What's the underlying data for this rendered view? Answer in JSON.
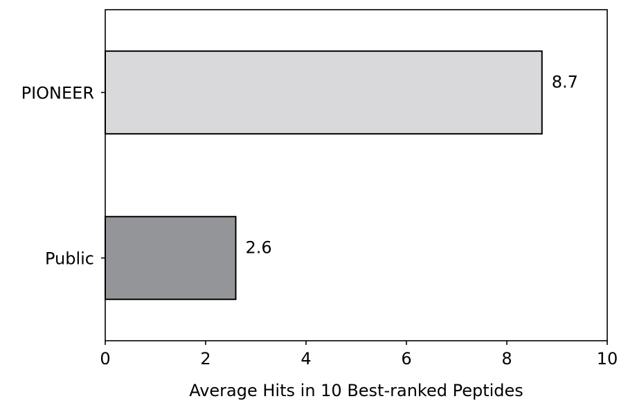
{
  "chart_data": {
    "type": "bar",
    "orientation": "horizontal",
    "categories": [
      "PIONEER",
      "Public"
    ],
    "values": [
      8.7,
      2.6
    ],
    "data_labels": [
      "8.7",
      "2.6"
    ],
    "colors": [
      "#d9d9db",
      "#949598"
    ],
    "edge_color": "#000000",
    "xlabel": "Average Hits in 10 Best-ranked Peptides",
    "xlim": [
      0,
      10
    ],
    "xticks": [
      0,
      2,
      4,
      6,
      8,
      10
    ],
    "xtick_labels": [
      "0",
      "2",
      "4",
      "6",
      "8",
      "10"
    ],
    "grid": false,
    "legend": "none"
  }
}
